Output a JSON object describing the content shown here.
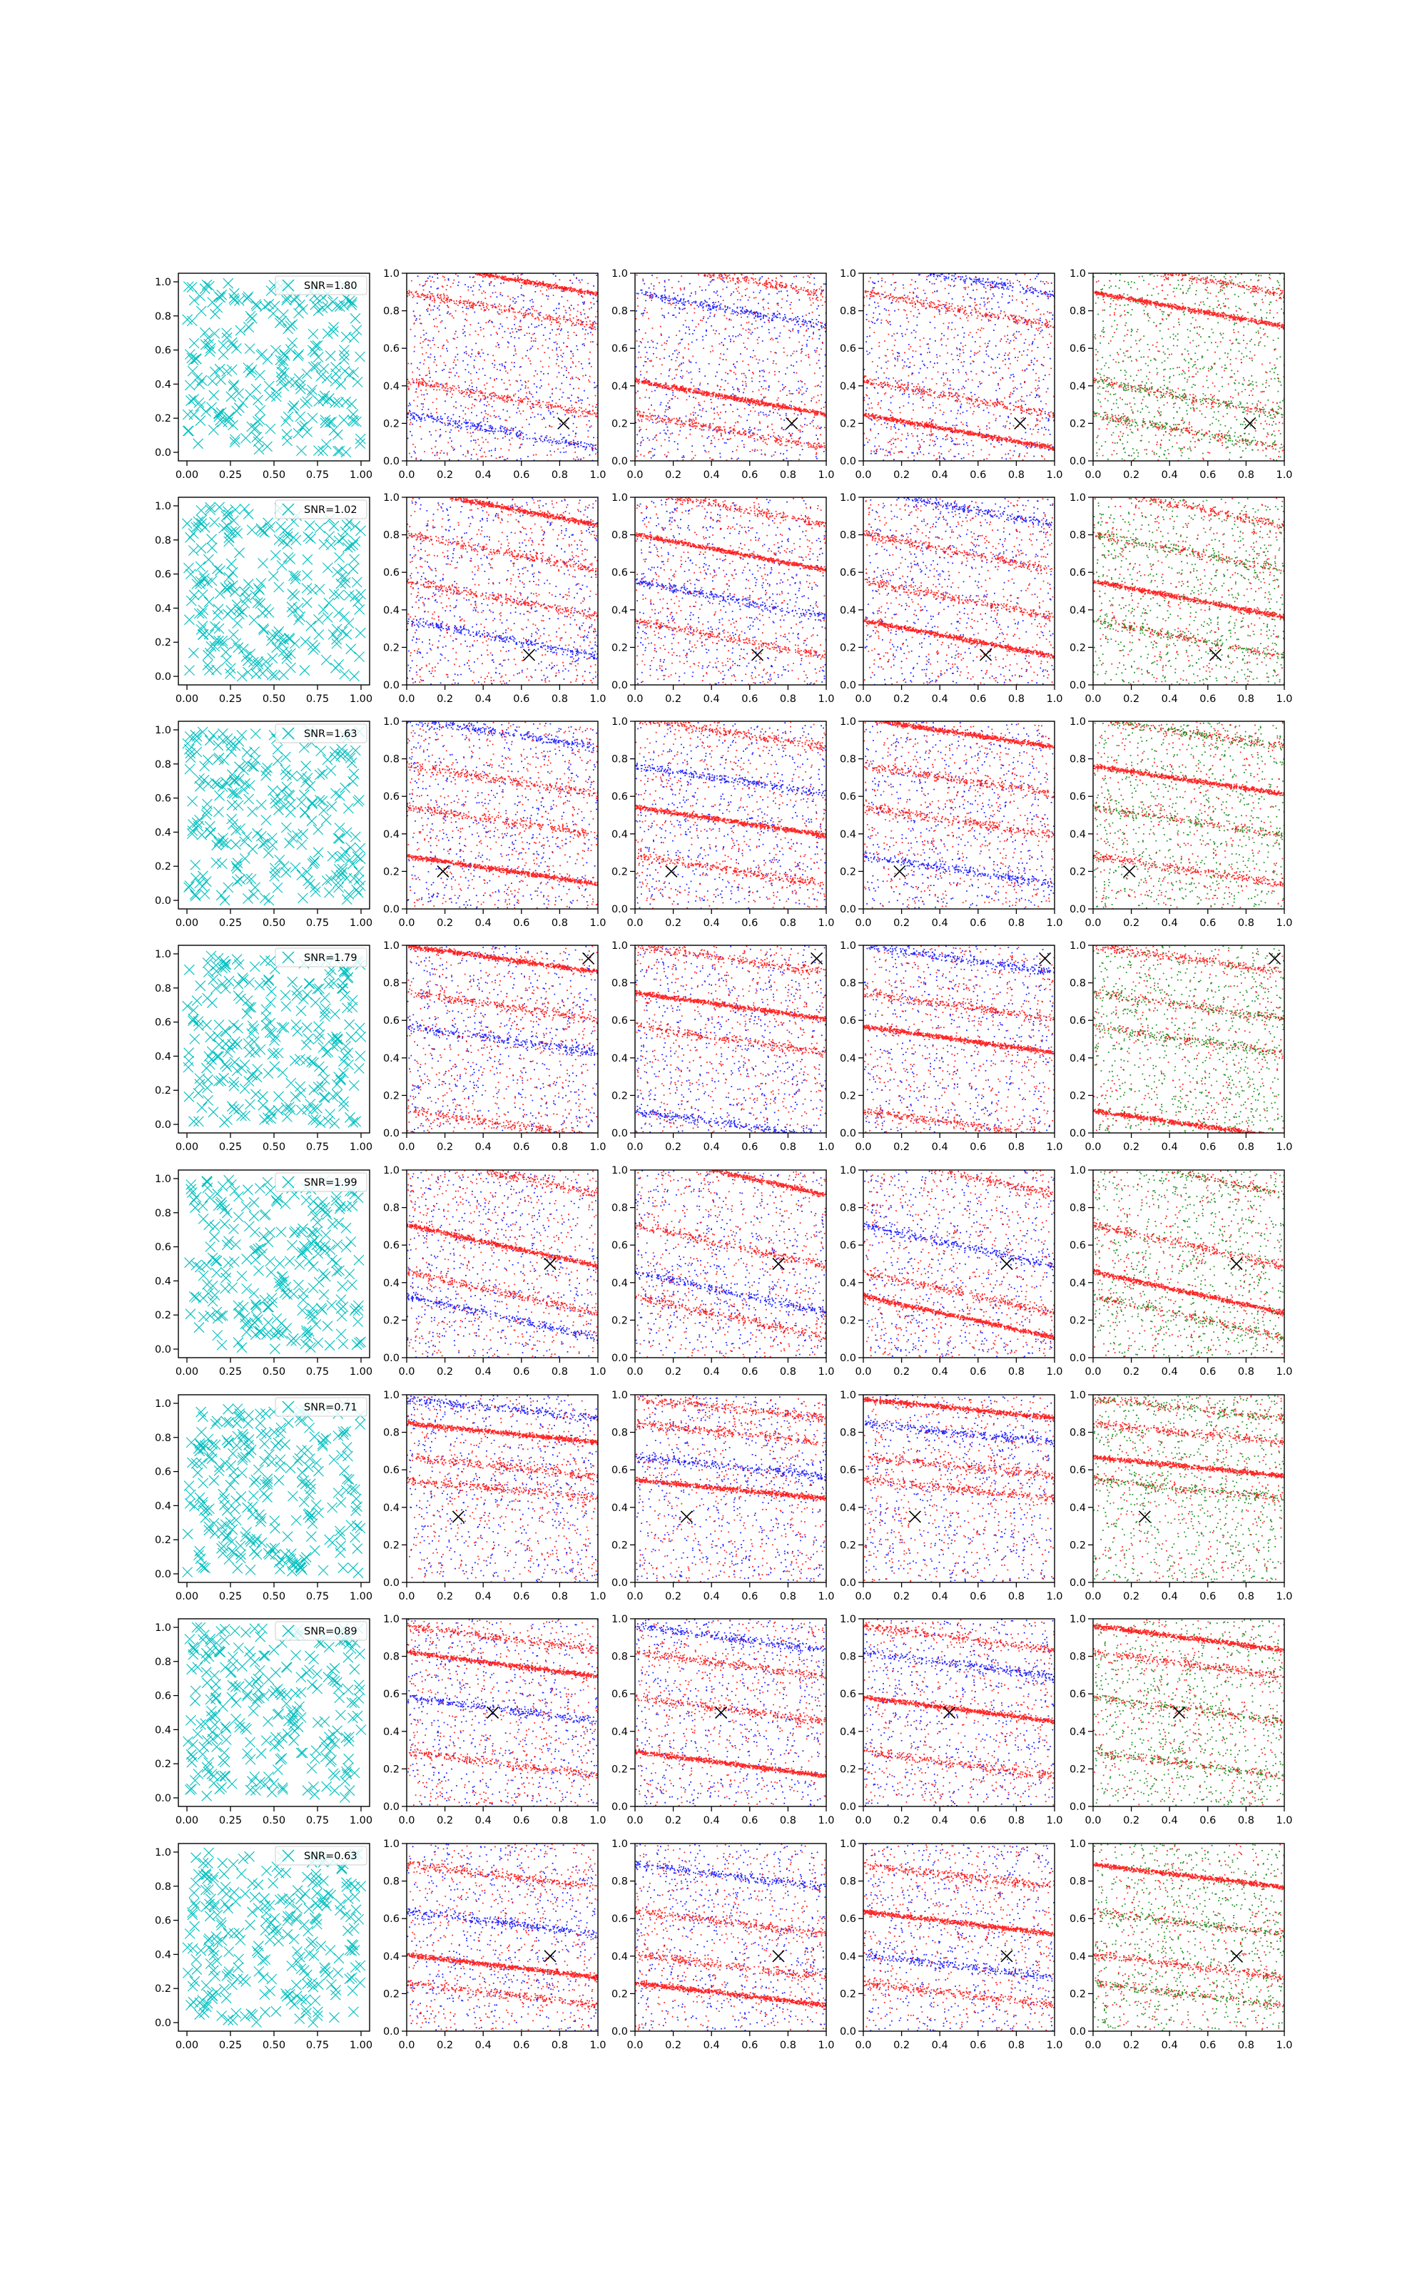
{
  "figure": {
    "colors": {
      "marker": "#00bfbf",
      "red": "#ff0000",
      "blue": "#0000ff",
      "green": "#008000",
      "target": "#000000",
      "axis": "#000000"
    },
    "icons": [
      "x-marker-icon"
    ],
    "grid": false,
    "legend_position": "top-right"
  },
  "chart_data": {
    "type": "scatter",
    "layout": {
      "rows": 8,
      "columns": 5
    },
    "first_column": {
      "xlim": [
        0,
        1
      ],
      "ylim": [
        0,
        1
      ],
      "xticks": [
        "0.00",
        "0.25",
        "0.50",
        "0.75",
        "1.00"
      ],
      "yticks": [
        "0.0",
        "0.2",
        "0.4",
        "0.6",
        "0.8",
        "1.0"
      ],
      "marker": "x",
      "legend_position": "upper right"
    },
    "other_columns": {
      "xlim": [
        0,
        1
      ],
      "ylim": [
        0,
        1
      ],
      "xticks": [
        "0.0",
        "0.2",
        "0.4",
        "0.6",
        "0.8",
        "1.0"
      ],
      "yticks": [
        "0.0",
        "0.2",
        "0.4",
        "0.6",
        "0.8",
        "1.0"
      ],
      "column_2_colors": [
        "red",
        "blue"
      ],
      "column_3_colors": [
        "red",
        "blue"
      ],
      "column_4_colors": [
        "red",
        "blue"
      ],
      "column_5_colors": [
        "red",
        "green"
      ]
    },
    "rows": [
      {
        "snr_label": "SNR=1.80",
        "target": [
          0.82,
          0.2
        ],
        "bands": [
          0.98,
          0.34,
          0.16,
          0.81
        ],
        "slope": -0.18
      },
      {
        "snr_label": "SNR=1.02",
        "target": [
          0.64,
          0.16
        ],
        "bands": [
          0.95,
          0.71,
          0.25,
          0.46
        ],
        "slope": -0.19
      },
      {
        "snr_label": "SNR=1.63",
        "target": [
          0.19,
          0.2
        ],
        "bands": [
          0.21,
          0.47,
          0.94,
          0.69
        ],
        "slope": -0.15
      },
      {
        "snr_label": "SNR=1.79",
        "target": [
          0.95,
          0.93
        ],
        "bands": [
          0.93,
          0.68,
          0.5,
          0.05
        ],
        "slope": -0.14
      },
      {
        "snr_label": "SNR=1.99",
        "target": [
          0.75,
          0.5
        ],
        "bands": [
          0.6,
          0.98,
          0.22,
          0.35
        ],
        "slope": -0.22
      },
      {
        "snr_label": "SNR=0.71",
        "target": [
          0.27,
          0.35
        ],
        "bands": [
          0.8,
          0.5,
          0.93,
          0.62
        ],
        "slope": -0.1
      },
      {
        "snr_label": "SNR=0.89",
        "target": [
          0.45,
          0.5
        ],
        "bands": [
          0.76,
          0.23,
          0.52,
          0.9
        ],
        "slope": -0.13
      },
      {
        "snr_label": "SNR=0.63",
        "target": [
          0.75,
          0.4
        ],
        "bands": [
          0.35,
          0.2,
          0.58,
          0.83
        ],
        "slope": -0.12
      }
    ]
  }
}
